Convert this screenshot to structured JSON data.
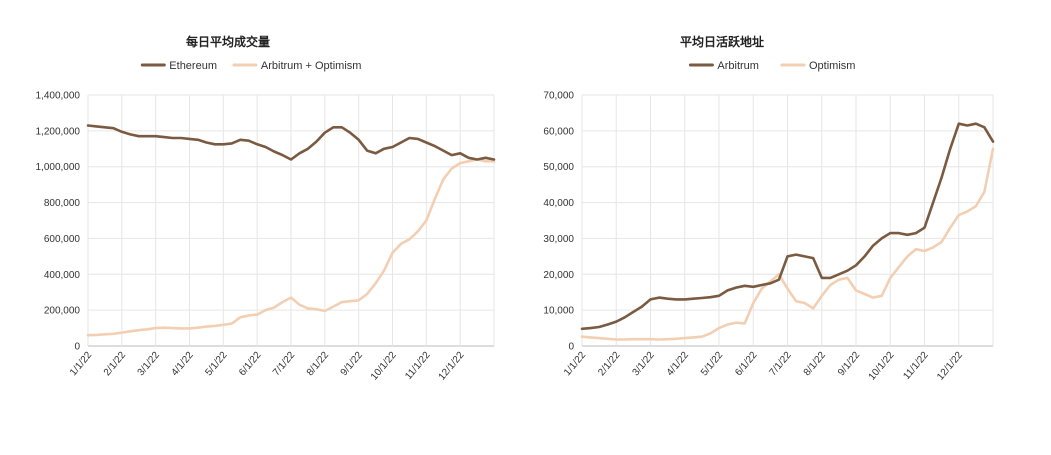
{
  "chart_data": [
    {
      "type": "line",
      "title": "每日平均成交量",
      "xlabel": "",
      "ylabel": "",
      "ylim": [
        0,
        1400000
      ],
      "yticks": [
        "0",
        "200,000",
        "400,000",
        "600,000",
        "800,000",
        "1,000,000",
        "1,200,000",
        "1,400,000"
      ],
      "ytick_values": [
        0,
        200000,
        400000,
        600000,
        800000,
        1000000,
        1200000,
        1400000
      ],
      "xlim": [
        0,
        12
      ],
      "xticks": [
        "1/1/22",
        "2/1/22",
        "3/1/22",
        "4/1/22",
        "5/1/22",
        "6/1/22",
        "7/1/22",
        "8/1/22",
        "9/1/22",
        "10/1/22",
        "11/1/22",
        "12/1/22"
      ],
      "grid": true,
      "legend_position": "top",
      "series": [
        {
          "name": "Ethereum",
          "color": "#7a5a40",
          "x": [
            0,
            0.25,
            0.5,
            0.75,
            1,
            1.25,
            1.5,
            1.75,
            2,
            2.25,
            2.5,
            2.75,
            3,
            3.25,
            3.5,
            3.75,
            4,
            4.25,
            4.5,
            4.75,
            5,
            5.25,
            5.5,
            5.75,
            6,
            6.25,
            6.5,
            6.75,
            7,
            7.25,
            7.5,
            7.75,
            8,
            8.25,
            8.5,
            8.75,
            9,
            9.25,
            9.5,
            9.75,
            10,
            10.25,
            10.5,
            10.75,
            11,
            11.25,
            11.5,
            11.75,
            12
          ],
          "values": [
            1230000,
            1225000,
            1220000,
            1215000,
            1195000,
            1180000,
            1170000,
            1170000,
            1170000,
            1165000,
            1160000,
            1160000,
            1155000,
            1150000,
            1135000,
            1125000,
            1125000,
            1130000,
            1150000,
            1145000,
            1125000,
            1110000,
            1085000,
            1065000,
            1040000,
            1075000,
            1100000,
            1140000,
            1190000,
            1220000,
            1220000,
            1190000,
            1150000,
            1090000,
            1075000,
            1100000,
            1110000,
            1135000,
            1160000,
            1155000,
            1135000,
            1115000,
            1090000,
            1065000,
            1075000,
            1050000,
            1040000,
            1050000,
            1040000
          ]
        },
        {
          "name": "Arbitrum + Optimism",
          "color": "#f2cfb3",
          "x": [
            0,
            0.25,
            0.5,
            0.75,
            1,
            1.25,
            1.5,
            1.75,
            2,
            2.25,
            2.5,
            2.75,
            3,
            3.25,
            3.5,
            3.75,
            4,
            4.25,
            4.5,
            4.75,
            5,
            5.25,
            5.5,
            5.75,
            6,
            6.25,
            6.5,
            6.75,
            7,
            7.25,
            7.5,
            7.75,
            8,
            8.25,
            8.5,
            8.75,
            9,
            9.25,
            9.5,
            9.75,
            10,
            10.25,
            10.5,
            10.75,
            11,
            11.25,
            11.5,
            11.75,
            12
          ],
          "values": [
            60000,
            62000,
            65000,
            68000,
            75000,
            82000,
            88000,
            93000,
            100000,
            102000,
            100000,
            98000,
            98000,
            102000,
            108000,
            112000,
            118000,
            125000,
            160000,
            170000,
            175000,
            200000,
            215000,
            245000,
            270000,
            230000,
            210000,
            205000,
            195000,
            220000,
            245000,
            250000,
            255000,
            290000,
            350000,
            420000,
            520000,
            570000,
            595000,
            640000,
            700000,
            820000,
            930000,
            990000,
            1020000,
            1030000,
            1040000,
            1030000,
            1030000
          ]
        }
      ]
    },
    {
      "type": "line",
      "title": "平均日活跃地址",
      "xlabel": "",
      "ylabel": "",
      "ylim": [
        0,
        70000
      ],
      "yticks": [
        "0",
        "10,000",
        "20,000",
        "30,000",
        "40,000",
        "50,000",
        "60,000",
        "70,000"
      ],
      "ytick_values": [
        0,
        10000,
        20000,
        30000,
        40000,
        50000,
        60000,
        70000
      ],
      "xlim": [
        0,
        12
      ],
      "xticks": [
        "1/1/22",
        "2/1/22",
        "3/1/22",
        "4/1/22",
        "5/1/22",
        "6/1/22",
        "7/1/22",
        "8/1/22",
        "9/1/22",
        "10/1/22",
        "11/1/22",
        "12/1/22"
      ],
      "grid": true,
      "legend_position": "top",
      "series": [
        {
          "name": "Arbitrum",
          "color": "#7a5a40",
          "x": [
            0,
            0.25,
            0.5,
            0.75,
            1,
            1.25,
            1.5,
            1.75,
            2,
            2.25,
            2.5,
            2.75,
            3,
            3.25,
            3.5,
            3.75,
            4,
            4.25,
            4.5,
            4.75,
            5,
            5.25,
            5.5,
            5.75,
            6,
            6.25,
            6.5,
            6.75,
            7,
            7.25,
            7.5,
            7.75,
            8,
            8.25,
            8.5,
            8.75,
            9,
            9.25,
            9.5,
            9.75,
            10,
            10.25,
            10.5,
            10.75,
            11,
            11.25,
            11.5,
            11.75,
            12
          ],
          "values": [
            4800,
            5000,
            5300,
            6000,
            6800,
            8000,
            9500,
            11000,
            13000,
            13500,
            13200,
            13000,
            13000,
            13200,
            13400,
            13600,
            14000,
            15500,
            16300,
            16800,
            16500,
            17000,
            17500,
            18500,
            25000,
            25500,
            25000,
            24500,
            19000,
            19000,
            20000,
            21000,
            22500,
            25000,
            28000,
            30000,
            31500,
            31500,
            31000,
            31500,
            33000,
            40000,
            47000,
            55000,
            62000,
            61500,
            62000,
            61000,
            57000
          ]
        },
        {
          "name": "Optimism",
          "color": "#f2cfb3",
          "x": [
            0,
            0.25,
            0.5,
            0.75,
            1,
            1.25,
            1.5,
            1.75,
            2,
            2.25,
            2.5,
            2.75,
            3,
            3.25,
            3.5,
            3.75,
            4,
            4.25,
            4.5,
            4.75,
            5,
            5.25,
            5.5,
            5.75,
            6,
            6.25,
            6.5,
            6.75,
            7,
            7.25,
            7.5,
            7.75,
            8,
            8.25,
            8.5,
            8.75,
            9,
            9.25,
            9.5,
            9.75,
            10,
            10.25,
            10.5,
            10.75,
            11,
            11.25,
            11.5,
            11.75,
            12
          ],
          "values": [
            2600,
            2400,
            2200,
            2000,
            1800,
            1800,
            1900,
            1900,
            1900,
            1800,
            1900,
            2000,
            2200,
            2400,
            2600,
            3500,
            5000,
            6000,
            6500,
            6300,
            12000,
            16000,
            18000,
            20000,
            16000,
            12500,
            12000,
            10500,
            14000,
            17000,
            18500,
            19000,
            15500,
            14500,
            13500,
            14000,
            19000,
            22000,
            25000,
            27000,
            26500,
            27500,
            29000,
            33000,
            36500,
            37500,
            39000,
            43000,
            55000
          ]
        }
      ]
    }
  ]
}
